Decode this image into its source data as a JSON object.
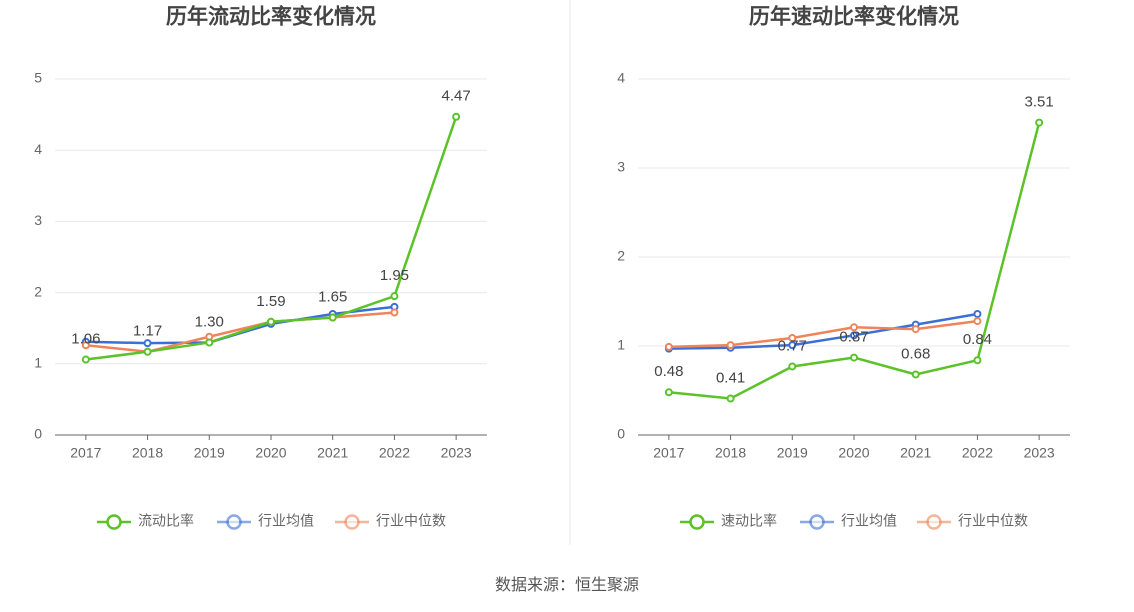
{
  "chart_data": [
    {
      "type": "line",
      "title": "历年流动比率变化情况",
      "categories": [
        "2017",
        "2018",
        "2019",
        "2020",
        "2021",
        "2022",
        "2023"
      ],
      "series": [
        {
          "name": "流动比率",
          "color": "#5bc229",
          "values": [
            1.06,
            1.17,
            1.3,
            1.59,
            1.65,
            1.95,
            4.47
          ],
          "value_labels": [
            "1.06",
            "1.17",
            "1.30",
            "1.59",
            "1.65",
            "1.95",
            "4.47"
          ]
        },
        {
          "name": "行业均值",
          "color": "#3b6fd6",
          "values": [
            1.31,
            1.29,
            1.3,
            1.56,
            1.7,
            1.8,
            null
          ]
        },
        {
          "name": "行业中位数",
          "color": "#ef845a",
          "values": [
            1.26,
            1.17,
            1.38,
            1.59,
            1.65,
            1.72,
            null
          ]
        }
      ],
      "ylim": [
        0,
        5
      ],
      "yticks": [
        0,
        1,
        2,
        3,
        4,
        5
      ],
      "grid": true
    },
    {
      "type": "line",
      "title": "历年速动比率变化情况",
      "categories": [
        "2017",
        "2018",
        "2019",
        "2020",
        "2021",
        "2022",
        "2023"
      ],
      "series": [
        {
          "name": "速动比率",
          "color": "#5bc229",
          "values": [
            0.48,
            0.41,
            0.77,
            0.87,
            0.68,
            0.84,
            3.51
          ],
          "value_labels": [
            "0.48",
            "0.41",
            "0.77",
            "0.87",
            "0.68",
            "0.84",
            "3.51"
          ]
        },
        {
          "name": "行业均值",
          "color": "#3b6fd6",
          "values": [
            0.97,
            0.98,
            1.01,
            1.12,
            1.24,
            1.36,
            null
          ]
        },
        {
          "name": "行业中位数",
          "color": "#ef845a",
          "values": [
            0.99,
            1.01,
            1.09,
            1.21,
            1.19,
            1.28,
            null
          ]
        }
      ],
      "ylim": [
        0,
        4
      ],
      "yticks": [
        0,
        1,
        2,
        3,
        4
      ],
      "grid": true
    }
  ],
  "source": "数据来源：恒生聚源"
}
